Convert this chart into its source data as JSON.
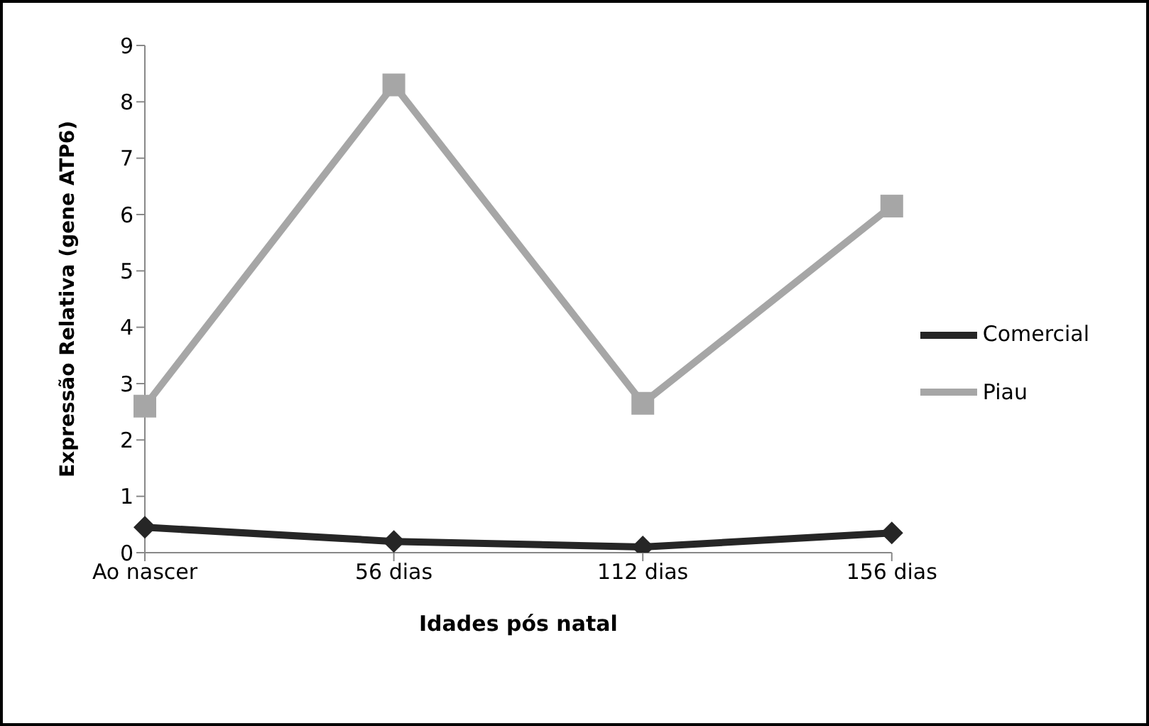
{
  "chart_data": {
    "type": "line",
    "xlabel": "Idades pós natal",
    "ylabel": "Expressão  Relativa  (gene ATP6)",
    "categories": [
      "Ao nascer",
      "56 dias",
      "112 dias",
      "156 dias"
    ],
    "series": [
      {
        "name": "Comercial",
        "color": "#262626",
        "marker": "diamond",
        "values": [
          0.45,
          0.2,
          0.1,
          0.35
        ]
      },
      {
        "name": "Piau",
        "color": "#a6a6a6",
        "marker": "square",
        "values": [
          2.6,
          8.3,
          2.65,
          6.15
        ]
      }
    ],
    "ylim": [
      0,
      9
    ],
    "yticks": [
      0,
      1,
      2,
      3,
      4,
      5,
      6,
      7,
      8,
      9
    ],
    "grid": false,
    "legend": "right"
  }
}
